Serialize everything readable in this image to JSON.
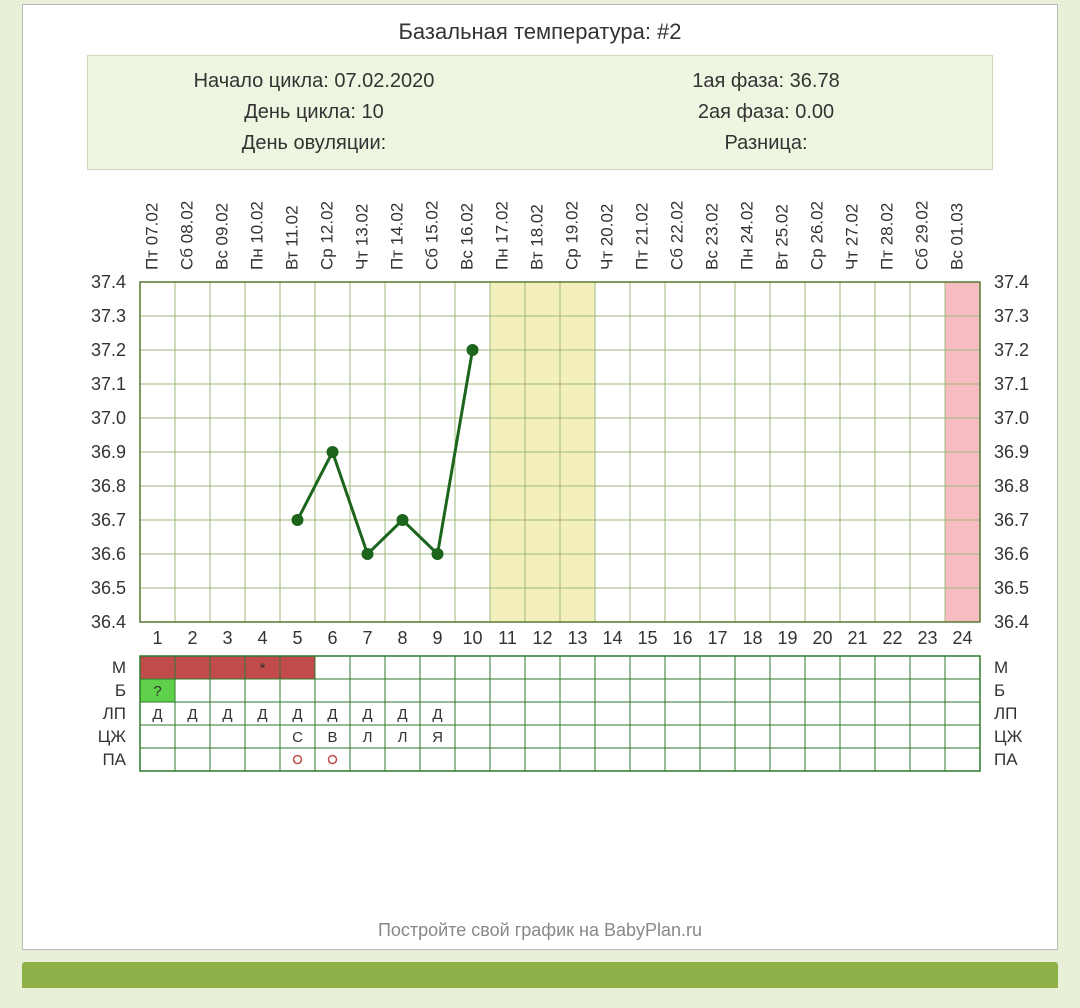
{
  "title": "Базальная температура: #2",
  "info": {
    "cycle_start_label": "Начало цикла: 07.02.2020",
    "cycle_day_label": "День цикла: 10",
    "ovulation_day_label": "День овуляции:",
    "phase1_label": "1ая фаза: 36.78",
    "phase2_label": "2ая фаза: 0.00",
    "diff_label": "Разница:"
  },
  "footer": "Постройте свой график на BabyPlan.ru",
  "chart": {
    "type": "line",
    "background_color": "#ffffff",
    "grid_color": "#9db77a",
    "outer_border_color": "#577a2f",
    "line_color": "#1d651d",
    "marker_color": "#1d651d",
    "marker_radius": 6,
    "line_width": 3,
    "days": 24,
    "ylim": [
      36.4,
      37.4
    ],
    "ytick_step": 0.1,
    "yticks": [
      "37.4",
      "37.3",
      "37.2",
      "37.1",
      "37.0",
      "36.9",
      "36.8",
      "36.7",
      "36.6",
      "36.5",
      "36.4"
    ],
    "date_labels": [
      "Пт 07.02",
      "Сб 08.02",
      "Вс 09.02",
      "Пн 10.02",
      "Вт 11.02",
      "Ср 12.02",
      "Чт 13.02",
      "Пт 14.02",
      "Сб 15.02",
      "Вс 16.02",
      "Пн 17.02",
      "Вт 18.02",
      "Ср 19.02",
      "Чт 20.02",
      "Пт 21.02",
      "Сб 22.02",
      "Вс 23.02",
      "Пн 24.02",
      "Вт 25.02",
      "Ср 26.02",
      "Чт 27.02",
      "Пт 28.02",
      "Сб 29.02",
      "Вс 01.03"
    ],
    "highlight_bands": [
      {
        "from_day": 11,
        "to_day": 13,
        "color": "#f3f0bd"
      },
      {
        "from_day": 24,
        "to_day": 24,
        "color": "#f6bcc2"
      }
    ],
    "points": [
      {
        "day": 5,
        "value": 36.7
      },
      {
        "day": 6,
        "value": 36.9
      },
      {
        "day": 7,
        "value": 36.6
      },
      {
        "day": 8,
        "value": 36.7
      },
      {
        "day": 9,
        "value": 36.6
      },
      {
        "day": 10,
        "value": 37.2
      }
    ]
  },
  "rows": {
    "labels": [
      "М",
      "Б",
      "ЛП",
      "ЦЖ",
      "ПА"
    ],
    "row_border_color": "#2e7a2e",
    "M": {
      "fills": [
        {
          "day": 1,
          "color": "#c14b4b"
        },
        {
          "day": 2,
          "color": "#c14b4b"
        },
        {
          "day": 3,
          "color": "#c14b4b"
        },
        {
          "day": 4,
          "color": "#c14b4b"
        },
        {
          "day": 5,
          "color": "#c14b4b"
        }
      ],
      "chars": [
        {
          "day": 4,
          "text": "*",
          "color": "#c02020"
        }
      ]
    },
    "B": {
      "fills": [
        {
          "day": 1,
          "color": "#5fd04a"
        }
      ],
      "chars": [
        {
          "day": 1,
          "text": "?",
          "color": "#a5e898"
        }
      ]
    },
    "LP": {
      "chars": [
        {
          "day": 1,
          "text": "Д"
        },
        {
          "day": 2,
          "text": "Д"
        },
        {
          "day": 3,
          "text": "Д"
        },
        {
          "day": 4,
          "text": "Д"
        },
        {
          "day": 5,
          "text": "Д"
        },
        {
          "day": 6,
          "text": "Д"
        },
        {
          "day": 7,
          "text": "Д"
        },
        {
          "day": 8,
          "text": "Д"
        },
        {
          "day": 9,
          "text": "Д"
        }
      ]
    },
    "CZ": {
      "chars": [
        {
          "day": 5,
          "text": "С"
        },
        {
          "day": 6,
          "text": "В"
        },
        {
          "day": 7,
          "text": "Л"
        },
        {
          "day": 8,
          "text": "Л"
        },
        {
          "day": 9,
          "text": "Я"
        }
      ]
    },
    "PA": {
      "circles": [
        {
          "day": 5
        },
        {
          "day": 6
        }
      ],
      "circle_color": "#c14b4b"
    }
  }
}
